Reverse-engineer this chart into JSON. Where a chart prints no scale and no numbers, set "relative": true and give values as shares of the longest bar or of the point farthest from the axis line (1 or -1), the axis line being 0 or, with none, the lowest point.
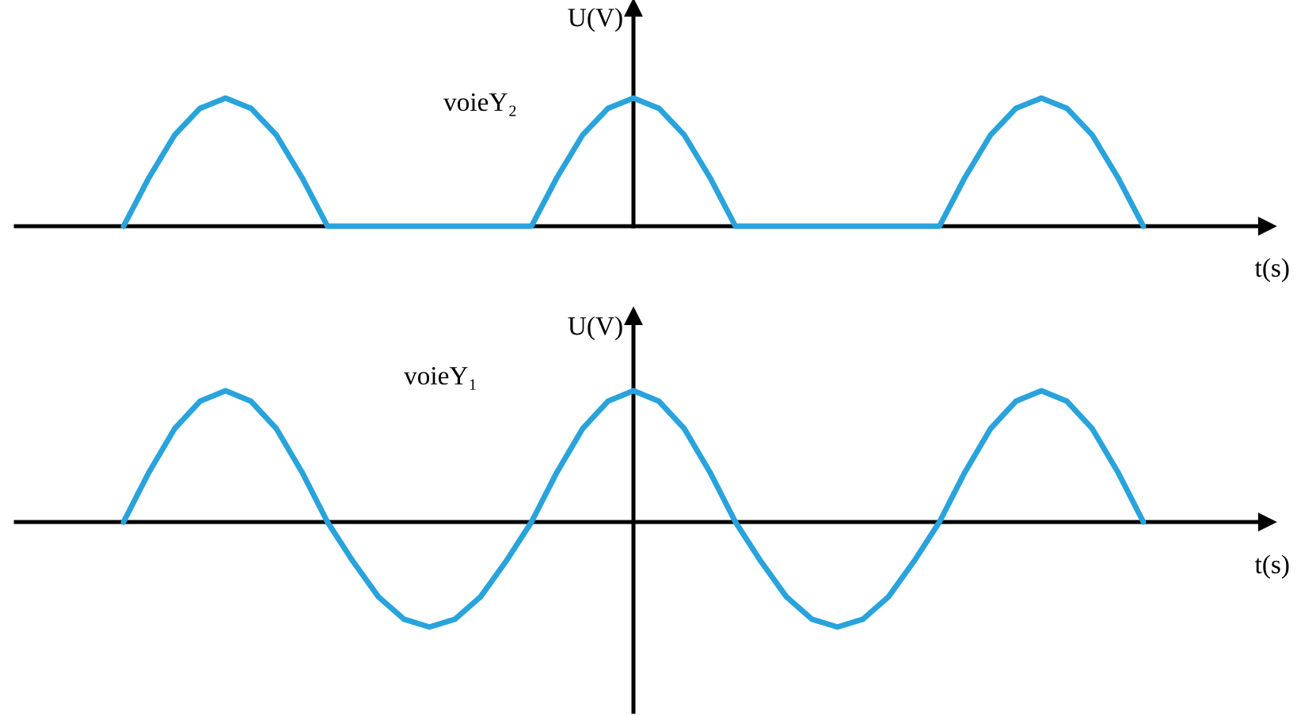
{
  "chart_data": [
    {
      "type": "line",
      "relative": true,
      "xlabel": "t(s)",
      "ylabel": "U(V)",
      "categories": [
        null,
        null,
        null,
        null,
        null,
        null,
        null,
        null,
        null,
        null,
        null,
        null,
        null,
        null,
        null,
        null,
        null,
        null,
        null,
        null,
        null,
        null,
        null,
        null,
        null,
        null,
        null,
        null,
        null,
        null,
        null,
        null,
        null,
        null,
        null,
        null,
        null,
        null,
        null,
        null,
        null
      ],
      "series": [
        {
          "name": "voieY₂",
          "color": "#29a3dc",
          "values": [
            0,
            0.38,
            0.71,
            0.92,
            1,
            0.92,
            0.71,
            0.38,
            0,
            0,
            0,
            0,
            0,
            0,
            0,
            0,
            0,
            0.38,
            0.71,
            0.92,
            1,
            0.92,
            0.71,
            0.38,
            0,
            0,
            0,
            0,
            0,
            0,
            0,
            0,
            0,
            0.38,
            0.71,
            0.92,
            1,
            0.92,
            0.71,
            0.38,
            0
          ]
        }
      ]
    },
    {
      "type": "line",
      "relative": true,
      "xlabel": "t(s)",
      "ylabel": "U(V)",
      "categories": [
        null,
        null,
        null,
        null,
        null,
        null,
        null,
        null,
        null,
        null,
        null,
        null,
        null,
        null,
        null,
        null,
        null,
        null,
        null,
        null,
        null,
        null,
        null,
        null,
        null,
        null,
        null,
        null,
        null,
        null,
        null,
        null,
        null,
        null,
        null,
        null,
        null,
        null,
        null,
        null,
        null
      ],
      "series": [
        {
          "name": "voieY₁",
          "color": "#29a3dc",
          "values": [
            0,
            0.38,
            0.71,
            0.92,
            1,
            0.92,
            0.71,
            0.38,
            0,
            -0.3,
            -0.57,
            -0.74,
            -0.8,
            -0.74,
            -0.57,
            -0.3,
            0,
            0.38,
            0.71,
            0.92,
            1,
            0.92,
            0.71,
            0.38,
            0,
            -0.3,
            -0.57,
            -0.74,
            -0.8,
            -0.74,
            -0.57,
            -0.3,
            0,
            0.38,
            0.71,
            0.92,
            1,
            0.92,
            0.71,
            0.38,
            0
          ]
        }
      ]
    }
  ]
}
